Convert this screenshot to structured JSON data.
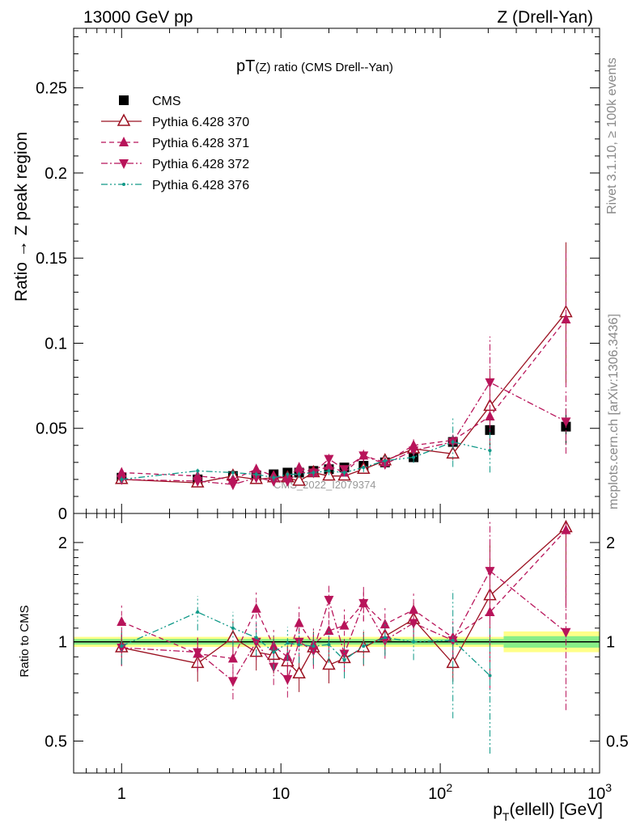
{
  "header": {
    "left": "13000 GeV pp",
    "right": "Z (Drell-Yan)"
  },
  "side_text": {
    "rivet": "Rivet 3.1.10, ≥ 100k events",
    "mcplots": "mcplots.cern.ch [arXiv:1306.3436]"
  },
  "watermark": "CMS_2022_I2079374",
  "chart_data": [
    {
      "type": "scatter",
      "title_main": "pT",
      "title_sub": "(Z) ratio (CMS Drell--Yan)",
      "ylabel": "Ratio → Z peak region",
      "xscale": "log",
      "xlim": [
        0.5,
        1000
      ],
      "ylim": [
        0,
        0.285
      ],
      "yticks": [
        "0",
        "0.05",
        "0.1",
        "0.15",
        "0.2",
        "0.25"
      ],
      "ytick_values": [
        0,
        0.05,
        0.1,
        0.15,
        0.2,
        0.25
      ],
      "legend_position": "top-left",
      "x": [
        1,
        3,
        5,
        7,
        9,
        11,
        13,
        16,
        20,
        25,
        33,
        45,
        68,
        120,
        205,
        615
      ],
      "series": [
        {
          "name": "CMS",
          "color": "#000000",
          "marker": "square",
          "line": "none",
          "values": [
            0.021,
            0.02,
            0.022,
            0.022,
            0.023,
            0.024,
            0.024,
            0.025,
            0.026,
            0.027,
            0.028,
            0.03,
            0.033,
            0.042,
            0.049,
            0.051
          ]
        },
        {
          "name": "Pythia 6.428 370",
          "color": "#9b1020",
          "marker": "triangle-up-open",
          "line": "solid",
          "values": [
            0.02,
            0.018,
            0.022,
            0.02,
            0.021,
            0.021,
            0.019,
            0.024,
            0.022,
            0.022,
            0.026,
            0.031,
            0.038,
            0.035,
            0.063,
            0.118
          ]
        },
        {
          "name": "Pythia 6.428 371",
          "color": "#b8145a",
          "marker": "triangle-up",
          "line": "dashed",
          "values": [
            0.024,
            0.022,
            0.02,
            0.026,
            0.022,
            0.021,
            0.027,
            0.024,
            0.028,
            0.024,
            0.034,
            0.03,
            0.04,
            0.043,
            0.057,
            0.114
          ]
        },
        {
          "name": "Pythia 6.428 372",
          "color": "#b8145a",
          "marker": "triangle-down",
          "line": "dashdot",
          "values": [
            0.02,
            0.019,
            0.017,
            0.021,
            0.019,
            0.019,
            0.024,
            0.024,
            0.032,
            0.026,
            0.034,
            0.029,
            0.037,
            0.042,
            0.077,
            0.054
          ]
        },
        {
          "name": "Pythia 6.428 376",
          "color": "#109988",
          "marker": "dot",
          "line": "dashdotdot",
          "values": [
            0.02,
            0.025,
            0.024,
            0.023,
            0.021,
            0.023,
            0.023,
            0.024,
            0.025,
            0.024,
            0.027,
            0.031,
            0.033,
            0.042,
            0.037,
            null
          ]
        }
      ]
    },
    {
      "type": "scatter",
      "ylabel": "Ratio to CMS",
      "xlabel": "p_T(ellell) [GeV]",
      "xscale": "log",
      "yscale": "log",
      "xlim": [
        0.5,
        1000
      ],
      "ylim": [
        0.4,
        2.45
      ],
      "yticks": [
        "0.5",
        "1",
        "2"
      ],
      "ytick_values": [
        0.5,
        1,
        2
      ],
      "xticks": [
        "1",
        "10",
        "10^2",
        "10^3"
      ],
      "xtick_values": [
        1,
        10,
        100,
        1000
      ],
      "x": [
        1,
        3,
        5,
        7,
        9,
        11,
        13,
        16,
        20,
        25,
        33,
        45,
        68,
        120,
        205,
        615
      ],
      "series": [
        {
          "name": "Pythia 6.428 370",
          "values": [
            0.96,
            0.86,
            1.03,
            0.93,
            0.91,
            0.87,
            0.8,
            0.96,
            0.85,
            0.89,
            0.96,
            1.04,
            1.17,
            0.86,
            1.38,
            2.22
          ]
        },
        {
          "name": "Pythia 6.428 371",
          "values": [
            1.15,
            0.92,
            0.89,
            1.26,
            0.97,
            0.9,
            1.14,
            0.98,
            1.08,
            1.12,
            1.31,
            1.13,
            1.25,
            1.03,
            1.23,
            2.18
          ]
        },
        {
          "name": "Pythia 6.428 372",
          "values": [
            0.96,
            0.93,
            0.76,
            1.0,
            0.84,
            0.77,
            1.0,
            0.94,
            1.34,
            0.92,
            1.31,
            1.01,
            1.14,
            1.01,
            1.64,
            1.07
          ]
        },
        {
          "name": "Pythia 6.428 376",
          "values": [
            0.97,
            1.23,
            1.1,
            1.03,
            0.93,
            0.99,
            0.98,
            0.97,
            0.98,
            0.88,
            0.97,
            1.03,
            1.0,
            1.01,
            0.79,
            null
          ]
        }
      ],
      "band": {
        "inner_color": "#88ee88",
        "outer_color": "#ffff88"
      }
    }
  ]
}
